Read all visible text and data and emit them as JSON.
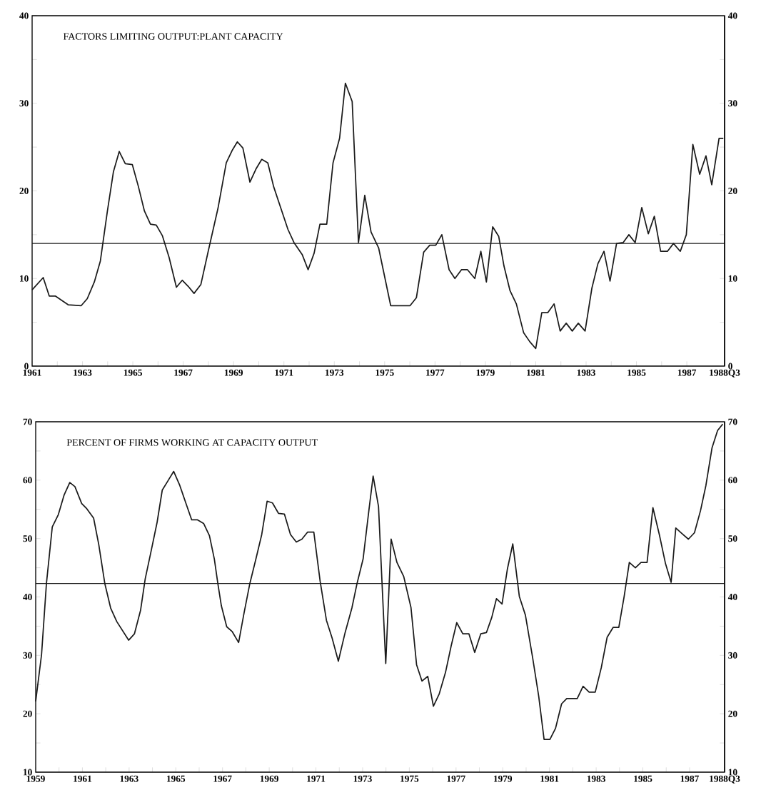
{
  "chart_data": [
    {
      "type": "line",
      "title": "FACTORS LIMITING OUTPUT:PLANT CAPACITY",
      "line_style": "solid",
      "x": [
        1961.0,
        1961.44,
        1961.68,
        1961.92,
        1962.43,
        1962.95,
        1963.19,
        1963.47,
        1963.71,
        1963.99,
        1964.23,
        1964.46,
        1964.7,
        1964.98,
        1965.22,
        1965.46,
        1965.7,
        1965.93,
        1966.17,
        1966.44,
        1966.73,
        1966.96,
        1967.2,
        1967.43,
        1967.7,
        1968.0,
        1968.38,
        1968.71,
        1968.94,
        1969.15,
        1969.37,
        1969.65,
        1969.89,
        1970.12,
        1970.36,
        1970.59,
        1970.88,
        1971.16,
        1971.4,
        1971.73,
        1971.96,
        1972.2,
        1972.43,
        1972.7,
        1972.95,
        1973.21,
        1973.44,
        1973.71,
        1973.96,
        1974.21,
        1974.46,
        1974.76,
        1975.24,
        1976.01,
        1976.26,
        1976.55,
        1976.79,
        1977.03,
        1977.27,
        1977.56,
        1977.79,
        1978.05,
        1978.29,
        1978.58,
        1978.82,
        1979.04,
        1979.29,
        1979.53,
        1979.74,
        1979.98,
        1980.23,
        1980.52,
        1980.76,
        1981.0,
        1981.24,
        1981.48,
        1981.73,
        1981.97,
        1982.21,
        1982.45,
        1982.69,
        1982.96,
        1983.23,
        1983.47,
        1983.71,
        1983.95,
        1984.21,
        1984.47,
        1984.7,
        1984.95,
        1985.21,
        1985.47,
        1985.71,
        1985.96,
        1986.23,
        1986.47,
        1986.74,
        1986.98,
        1987.24,
        1987.51,
        1987.76,
        1987.99,
        1988.28,
        1988.45
      ],
      "series": [
        {
          "color": "#1a1a1a",
          "values": [
            8.7,
            10.1,
            8.0,
            8.0,
            7.0,
            6.9,
            7.7,
            9.6,
            12.0,
            17.7,
            22.2,
            24.5,
            23.1,
            23.0,
            20.5,
            17.7,
            16.2,
            16.1,
            14.9,
            12.4,
            9.0,
            9.8,
            9.1,
            8.3,
            9.3,
            13.2,
            18.0,
            23.2,
            24.6,
            25.6,
            24.9,
            21.0,
            22.5,
            23.6,
            23.2,
            20.5,
            18.0,
            15.6,
            14.1,
            12.7,
            11.0,
            12.9,
            16.2,
            16.2,
            23.2,
            26.0,
            32.3,
            30.2,
            14.1,
            19.5,
            15.3,
            13.5,
            6.9,
            6.9,
            7.8,
            13.0,
            13.8,
            13.8,
            15.0,
            11.0,
            10.0,
            11.0,
            11.0,
            10.0,
            13.1,
            9.6,
            15.9,
            14.8,
            11.4,
            8.6,
            7.1,
            3.8,
            2.8,
            2.0,
            6.1,
            6.1,
            7.1,
            4.0,
            4.9,
            4.0,
            4.9,
            4.0,
            8.9,
            11.7,
            13.1,
            9.7,
            14.0,
            14.1,
            15.0,
            14.1,
            18.1,
            15.1,
            17.1,
            13.1,
            13.1,
            14.0,
            13.1,
            15.0,
            25.3,
            21.9,
            24.0,
            20.7,
            26.0,
            26.0
          ]
        }
      ],
      "xlim": [
        1961,
        1988.5
      ],
      "xticks": [
        1961,
        {
          "value": 1962,
          "label": null
        },
        1963,
        {
          "value": 1964,
          "label": null
        },
        1965,
        {
          "value": 1966,
          "label": null
        },
        1967,
        {
          "value": 1968,
          "label": null
        },
        1969,
        {
          "value": 1970,
          "label": null
        },
        1971,
        {
          "value": 1972,
          "label": null
        },
        1973,
        {
          "value": 1974,
          "label": null
        },
        1975,
        {
          "value": 1976,
          "label": null
        },
        1977,
        {
          "value": 1978,
          "label": null
        },
        1979,
        {
          "value": 1980,
          "label": null
        },
        1981,
        {
          "value": 1982,
          "label": null
        },
        1983,
        {
          "value": 1984,
          "label": null
        },
        1985,
        {
          "value": 1986,
          "label": null
        },
        1987,
        {
          "value": 1988.5,
          "label": "1988Q3"
        }
      ],
      "ylim": [
        0,
        40
      ],
      "yticks": [
        0,
        {
          "value": 5,
          "label": null
        },
        10,
        {
          "value": 15,
          "label": null
        },
        20,
        {
          "value": 25,
          "label": null
        },
        30,
        {
          "value": 35,
          "label": null
        },
        40
      ],
      "y2lim": [
        0,
        40
      ],
      "y2ticks": [
        0,
        {
          "value": 5,
          "label": null
        },
        10,
        {
          "value": 15,
          "label": null
        },
        20,
        {
          "value": 25,
          "label": null
        },
        30,
        {
          "value": 35,
          "label": null
        },
        40
      ],
      "ref_lines": [
        {
          "axis": "y",
          "value": 14,
          "color": "#1a1a1a"
        }
      ]
    },
    {
      "type": "line",
      "title": "PERCENT OF FIRMS WORKING AT CAPACITY OUTPUT",
      "line_style": "solid",
      "x": [
        1959.0,
        1959.25,
        1959.46,
        1959.71,
        1959.97,
        1960.22,
        1960.46,
        1960.68,
        1960.97,
        1961.19,
        1961.48,
        1961.7,
        1961.96,
        1962.21,
        1962.47,
        1962.98,
        1963.23,
        1963.49,
        1963.69,
        1963.94,
        1964.2,
        1964.42,
        1964.68,
        1964.91,
        1965.17,
        1965.42,
        1965.68,
        1965.93,
        1966.19,
        1966.44,
        1966.65,
        1966.8,
        1966.95,
        1967.18,
        1967.41,
        1967.69,
        1967.92,
        1968.17,
        1968.43,
        1968.68,
        1968.91,
        1969.14,
        1969.4,
        1969.65,
        1969.91,
        1970.16,
        1970.4,
        1970.64,
        1970.91,
        1971.18,
        1971.45,
        1971.69,
        1971.96,
        1972.25,
        1972.54,
        1972.76,
        1973.02,
        1973.27,
        1973.45,
        1973.68,
        1973.99,
        1974.22,
        1974.47,
        1974.76,
        1975.07,
        1975.31,
        1975.54,
        1975.79,
        1976.03,
        1976.28,
        1976.55,
        1976.79,
        1977.03,
        1977.29,
        1977.55,
        1977.8,
        1978.06,
        1978.3,
        1978.53,
        1978.73,
        1978.97,
        1979.2,
        1979.43,
        1979.71,
        1979.97,
        1980.28,
        1980.54,
        1980.77,
        1981.02,
        1981.26,
        1981.52,
        1981.74,
        1982.19,
        1982.44,
        1982.7,
        1982.96,
        1983.22,
        1983.47,
        1983.73,
        1983.97,
        1984.2,
        1984.42,
        1984.68,
        1984.92,
        1985.18,
        1985.43,
        1985.71,
        1985.97,
        1986.21,
        1986.41,
        1986.69,
        1986.95,
        1987.21,
        1987.47,
        1987.7,
        1987.96,
        1988.2,
        1988.42
      ],
      "series": [
        {
          "color": "#1a1a1a",
          "values": [
            22.1,
            30.1,
            42.3,
            52.0,
            54.1,
            57.5,
            59.6,
            58.9,
            56.0,
            55.1,
            53.5,
            49.0,
            42.3,
            38.1,
            35.8,
            32.6,
            33.7,
            37.7,
            43.1,
            47.8,
            52.8,
            58.3,
            60.0,
            61.5,
            59.1,
            56.2,
            53.2,
            53.2,
            52.6,
            50.5,
            46.5,
            42.3,
            38.5,
            34.9,
            34.1,
            32.2,
            37.2,
            42.3,
            46.5,
            50.7,
            56.4,
            56.1,
            54.3,
            54.2,
            50.7,
            49.4,
            49.9,
            51.1,
            51.1,
            42.7,
            36.0,
            33.0,
            29.0,
            33.9,
            38.1,
            42.3,
            46.5,
            54.9,
            60.7,
            55.5,
            28.6,
            49.9,
            45.9,
            43.5,
            38.2,
            28.4,
            25.6,
            26.4,
            21.3,
            23.4,
            27.1,
            31.6,
            35.6,
            33.7,
            33.7,
            30.5,
            33.7,
            33.9,
            36.5,
            39.7,
            38.8,
            44.8,
            49.1,
            40.1,
            36.9,
            29.6,
            23.0,
            15.6,
            15.6,
            17.5,
            21.7,
            22.6,
            22.6,
            24.7,
            23.7,
            23.7,
            27.9,
            33.1,
            34.8,
            34.8,
            40.1,
            45.9,
            45.0,
            45.9,
            45.9,
            55.3,
            50.6,
            45.7,
            42.5,
            51.8,
            50.8,
            49.9,
            51.0,
            54.8,
            59.1,
            65.5,
            68.5,
            69.6
          ]
        }
      ],
      "xlim": [
        1959,
        1988.5
      ],
      "xticks": [
        1959,
        {
          "value": 1960,
          "label": null
        },
        1961,
        {
          "value": 1962,
          "label": null
        },
        1963,
        {
          "value": 1964,
          "label": null
        },
        1965,
        {
          "value": 1966,
          "label": null
        },
        1967,
        {
          "value": 1968,
          "label": null
        },
        1969,
        {
          "value": 1970,
          "label": null
        },
        1971,
        {
          "value": 1972,
          "label": null
        },
        1973,
        {
          "value": 1974,
          "label": null
        },
        1975,
        {
          "value": 1976,
          "label": null
        },
        1977,
        {
          "value": 1978,
          "label": null
        },
        1979,
        {
          "value": 1980,
          "label": null
        },
        1981,
        {
          "value": 1982,
          "label": null
        },
        1983,
        {
          "value": 1984,
          "label": null
        },
        1985,
        {
          "value": 1986,
          "label": null
        },
        1987,
        {
          "value": 1988.5,
          "label": "1988Q3"
        }
      ],
      "ylim": [
        10,
        70
      ],
      "yticks": [
        10,
        {
          "value": 15,
          "label": null
        },
        20,
        {
          "value": 25,
          "label": null
        },
        30,
        {
          "value": 35,
          "label": null
        },
        40,
        {
          "value": 45,
          "label": null
        },
        50,
        {
          "value": 55,
          "label": null
        },
        60,
        {
          "value": 65,
          "label": null
        },
        70
      ],
      "y2lim": [
        10,
        70
      ],
      "y2ticks": [
        10,
        {
          "value": 15,
          "label": null
        },
        20,
        {
          "value": 25,
          "label": null
        },
        30,
        {
          "value": 35,
          "label": null
        },
        40,
        {
          "value": 45,
          "label": null
        },
        50,
        {
          "value": 55,
          "label": null
        },
        60,
        {
          "value": 65,
          "label": null
        },
        70
      ],
      "ref_lines": [
        {
          "axis": "y",
          "value": 42.3,
          "color": "#1a1a1a"
        }
      ]
    }
  ]
}
